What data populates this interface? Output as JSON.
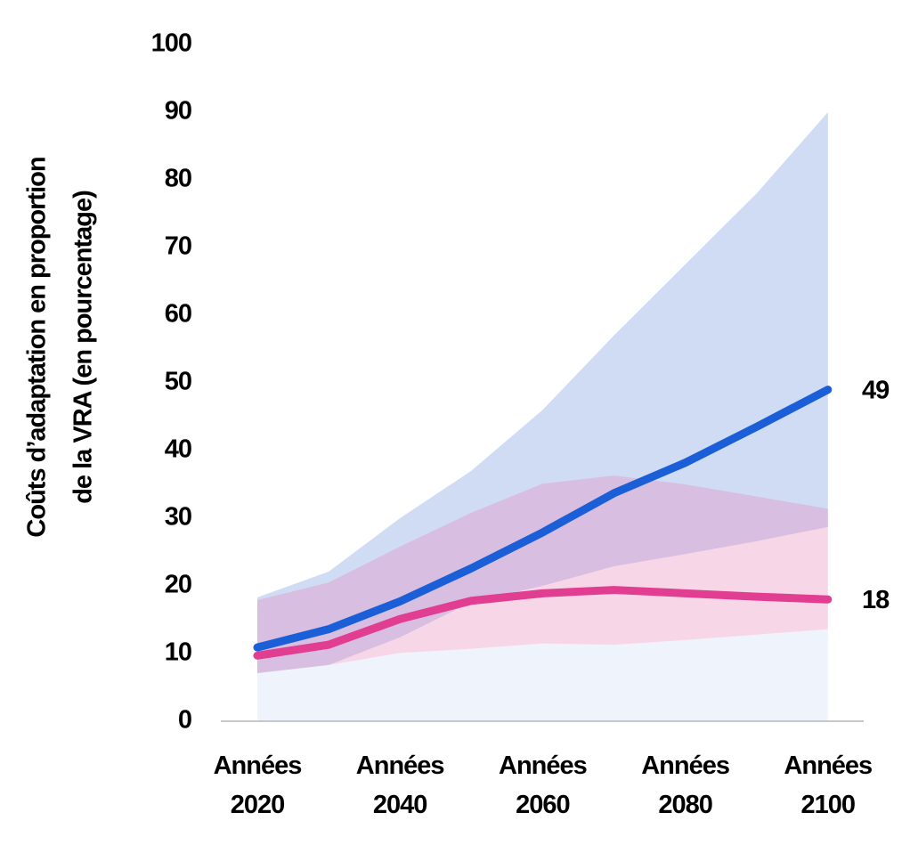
{
  "chart_data": {
    "type": "line",
    "y_label": [
      "Coûts d’adaptation en proportion",
      "de la VRA  (en pourcentage)"
    ],
    "categories": [
      "Années 2020",
      null,
      "Années 2040",
      null,
      "Années 2060",
      null,
      "Années 2080",
      null,
      "Années 2100"
    ],
    "series": [
      {
        "color": "#1b5fd8",
        "band_color": "#cfdcf4",
        "values": [
          10.9,
          13.6,
          17.7,
          22.6,
          27.9,
          33.7,
          38.2,
          43.5,
          49
        ],
        "upper": [
          18.3,
          22.1,
          30,
          37,
          46,
          57,
          67.5,
          78,
          90
        ],
        "lower": [
          7.1,
          8.3,
          12.4,
          17.6,
          20,
          22.9,
          24.7,
          26.6,
          28.7
        ]
      },
      {
        "color": "#e13e92",
        "band_color": "#e889bd",
        "values": [
          9.7,
          11.3,
          15.1,
          17.8,
          18.9,
          19.4,
          18.9,
          18.4,
          18
        ],
        "upper": [
          17.9,
          20.5,
          25.8,
          30.8,
          35.1,
          36.3,
          35,
          33.2,
          31.4
        ],
        "lower": [
          7.1,
          8.3,
          10.1,
          10.7,
          11.5,
          11.3,
          12,
          12.8,
          13.6
        ]
      }
    ],
    "ylim": [
      0,
      100
    ],
    "yticks": [
      0,
      10,
      20,
      30,
      40,
      50,
      60,
      70,
      80,
      90,
      100
    ],
    "grid": false
  }
}
